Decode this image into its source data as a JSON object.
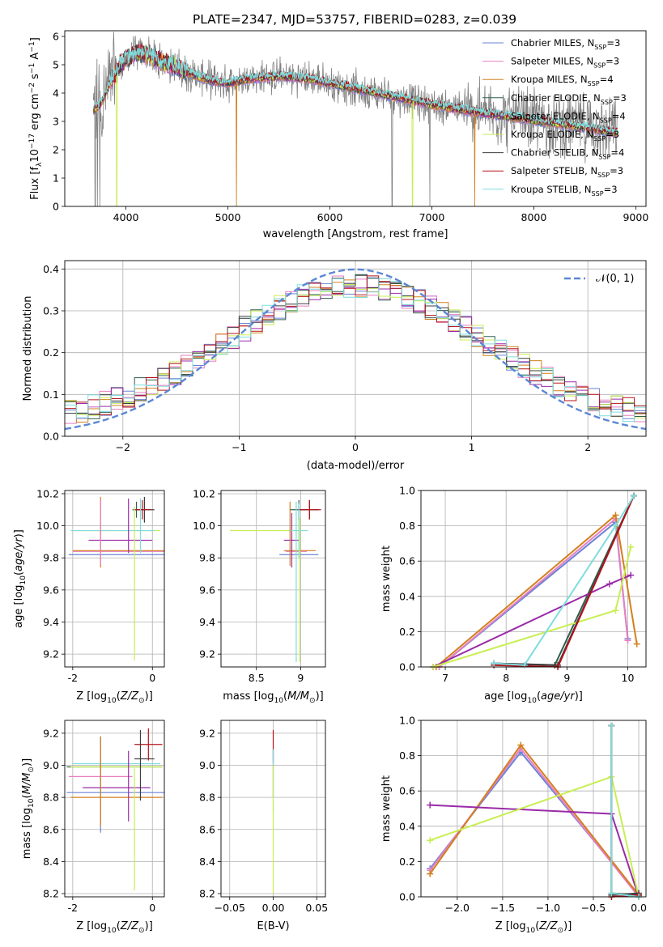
{
  "figure": {
    "title": "PLATE=2347, MJD=53757, FIBERID=0283, z=0.039"
  },
  "series_meta": [
    {
      "name": "Chabrier MILES",
      "nssp": "3",
      "color": "#6a83d6"
    },
    {
      "name": "Salpeter MILES",
      "nssp": "3",
      "color": "#e87fc2"
    },
    {
      "name": "Kroupa MILES",
      "nssp": "4",
      "color": "#d2801c"
    },
    {
      "name": "Chabrier ELODIE",
      "nssp": "3",
      "color": "#2f5f52"
    },
    {
      "name": "Salpeter ELODIE",
      "nssp": "4",
      "color": "#9a2ba8"
    },
    {
      "name": "Kroupa ELODIE",
      "nssp": "3",
      "color": "#c9ee52"
    },
    {
      "name": "Chabrier STELIB",
      "nssp": "4",
      "color": "#3d3d3d"
    },
    {
      "name": "Salpeter STELIB",
      "nssp": "3",
      "color": "#b5141c"
    },
    {
      "name": "Kroupa STELIB",
      "nssp": "3",
      "color": "#7fdcdc"
    }
  ],
  "chart_data": [
    {
      "id": "spectrum",
      "type": "line",
      "xlabel": "wavelength [Angstrom, rest frame]",
      "ylabel": "Flux [f_λ10^-17 erg cm^-2 s^-1 A^-1]",
      "xlim": [
        3400,
        9100
      ],
      "ylim": [
        0,
        6.2
      ],
      "xticks": [
        "4000",
        "5000",
        "6000",
        "7000",
        "8000",
        "9000"
      ],
      "yticks": [
        "0",
        "1",
        "2",
        "3",
        "4",
        "5",
        "6"
      ],
      "data_color": "#808080",
      "continuum": {
        "x": [
          3680,
          3750,
          3850,
          3950,
          4000,
          4100,
          4200,
          4350,
          4500,
          4700,
          4900,
          5000,
          5200,
          5500,
          5800,
          6200,
          6600,
          7000,
          7400,
          7800,
          8200,
          8500,
          8800
        ],
        "y": [
          3.4,
          3.6,
          4.4,
          5.0,
          5.2,
          5.4,
          5.4,
          5.1,
          4.9,
          4.6,
          4.4,
          4.35,
          4.5,
          4.6,
          4.5,
          4.2,
          3.9,
          3.6,
          3.35,
          3.15,
          2.95,
          2.8,
          2.6
        ]
      },
      "legend_placement": "upper right",
      "grid": false
    },
    {
      "id": "residuals",
      "type": "line",
      "xlabel": "(data-model)/error",
      "ylabel": "Normed distribution",
      "xlim": [
        -2.5,
        2.5
      ],
      "ylim": [
        0,
        0.42
      ],
      "xticks": [
        "−2",
        "−1",
        "0",
        "1",
        "2"
      ],
      "yticks": [
        "0.0",
        "0.1",
        "0.2",
        "0.3",
        "0.4"
      ],
      "gaussian_label": "𝒩(0, 1)",
      "gaussian_color": "#5b86d6",
      "grid": true,
      "legend_placement": "upper right"
    },
    {
      "id": "age_vs_Z",
      "type": "scatter",
      "xlabel": "Z [log10(Z/Z⊙)]",
      "ylabel": "age [log10(age/yr)]",
      "xlim": [
        -2.2,
        0.3
      ],
      "ylim": [
        9.12,
        10.22
      ],
      "xticks": [
        -2,
        0
      ],
      "yticks": [
        9.2,
        9.4,
        9.6,
        9.8,
        10.0,
        10.2
      ],
      "grid": true,
      "errorbars": [
        {
          "s": 0,
          "x": -0.9,
          "y": 9.82,
          "xerr": 1.2,
          "yerr": 0.0
        },
        {
          "s": 1,
          "x": -0.85,
          "y": 9.84,
          "xerr": 1.15,
          "yerr": 0.0
        },
        {
          "s": 2,
          "x": -0.8,
          "y": 9.845,
          "xerr": 1.2,
          "yerr": 0.0
        },
        {
          "s": 3,
          "x": -0.4,
          "y": 10.1,
          "xerr": 0.1,
          "yerr": 0.05
        },
        {
          "s": 4,
          "x": -0.8,
          "y": 9.91,
          "xerr": 0.8,
          "yerr": 0.0
        },
        {
          "s": 5,
          "x": -0.9,
          "y": 9.97,
          "xerr": 1.1,
          "yerr": 0.0
        },
        {
          "s": 6,
          "x": -0.2,
          "y": 10.1,
          "xerr": 0.25,
          "yerr": 0.08
        },
        {
          "s": 7,
          "x": -0.25,
          "y": 10.1,
          "xerr": 0.2,
          "yerr": 0.06
        },
        {
          "s": 8,
          "x": -1.0,
          "y": 9.97,
          "xerr": 1.05,
          "yerr": 0.0
        },
        {
          "s": 2,
          "x": -1.3,
          "y": 9.96,
          "xerr": 0.0,
          "yerr": 0.22
        },
        {
          "s": 1,
          "x": -1.3,
          "y": 9.96,
          "xerr": 0.0,
          "yerr": 0.2
        },
        {
          "s": 4,
          "x": -0.6,
          "y": 10.0,
          "xerr": 0.0,
          "yerr": 0.17
        },
        {
          "s": 5,
          "x": -0.45,
          "y": 9.64,
          "xerr": 0.0,
          "yerr": 0.48
        },
        {
          "s": 8,
          "x": -0.3,
          "y": 10.0,
          "xerr": 0.0,
          "yerr": 0.17
        }
      ]
    },
    {
      "id": "age_vs_mass",
      "type": "scatter",
      "xlabel": "mass [log10(M/M⊙)]",
      "ylabel": "",
      "xlim": [
        8.1,
        9.28
      ],
      "ylim": [
        9.12,
        10.22
      ],
      "xticks": [
        8.5,
        9.0
      ],
      "yticks": [
        9.2,
        9.4,
        9.6,
        9.8,
        10.0,
        10.2
      ],
      "grid": true,
      "errorbars": [
        {
          "s": 0,
          "x": 8.98,
          "y": 9.82,
          "xerr": 0.22,
          "yerr": 0.0
        },
        {
          "s": 1,
          "x": 8.95,
          "y": 9.84,
          "xerr": 0.12,
          "yerr": 0.0
        },
        {
          "s": 2,
          "x": 8.99,
          "y": 9.845,
          "xerr": 0.18,
          "yerr": 0.0
        },
        {
          "s": 3,
          "x": 8.98,
          "y": 10.1,
          "xerr": 0.1,
          "yerr": 0.06
        },
        {
          "s": 4,
          "x": 8.9,
          "y": 9.91,
          "xerr": 0.09,
          "yerr": 0.17
        },
        {
          "s": 5,
          "x": 8.6,
          "y": 9.97,
          "xerr": 0.4,
          "yerr": 0.0
        },
        {
          "s": 6,
          "x": 9.1,
          "y": 10.1,
          "xerr": 0.1,
          "yerr": 0.06
        },
        {
          "s": 7,
          "x": 9.1,
          "y": 10.1,
          "xerr": 0.13,
          "yerr": 0.06
        },
        {
          "s": 8,
          "x": 8.98,
          "y": 9.97,
          "xerr": 0.1,
          "yerr": 0.17
        },
        {
          "s": 5,
          "x": 8.99,
          "y": 9.6,
          "xerr": 0.0,
          "yerr": 0.45
        },
        {
          "s": 2,
          "x": 8.88,
          "y": 9.95,
          "xerr": 0.0,
          "yerr": 0.2
        },
        {
          "s": 8,
          "x": 8.95,
          "y": 9.65,
          "xerr": 0.0,
          "yerr": 0.5
        }
      ]
    },
    {
      "id": "weight_vs_age",
      "type": "line",
      "xlabel": "age [log10(age/yr)]",
      "ylabel": "mass weight",
      "xlim": [
        6.6,
        10.3
      ],
      "ylim": [
        0,
        1
      ],
      "xticks": [
        7,
        8,
        9,
        10
      ],
      "yticks": [
        "0.0",
        "0.2",
        "0.4",
        "0.6",
        "0.8",
        "1.0"
      ],
      "grid": true,
      "lines": [
        {
          "s": 0,
          "x": [
            6.9,
            9.8,
            10.0
          ],
          "y": [
            0.0,
            0.82,
            0.16
          ]
        },
        {
          "s": 1,
          "x": [
            6.9,
            9.8,
            10.0
          ],
          "y": [
            0.0,
            0.84,
            0.15
          ]
        },
        {
          "s": 2,
          "x": [
            6.85,
            9.8,
            10.15
          ],
          "y": [
            0.0,
            0.86,
            0.13
          ]
        },
        {
          "s": 3,
          "x": [
            7.8,
            8.8,
            10.1
          ],
          "y": [
            0.02,
            0.01,
            0.97
          ]
        },
        {
          "s": 4,
          "x": [
            6.8,
            9.7,
            10.05
          ],
          "y": [
            0.0,
            0.47,
            0.52
          ]
        },
        {
          "s": 5,
          "x": [
            6.8,
            9.8,
            10.05
          ],
          "y": [
            0.0,
            0.32,
            0.68
          ]
        },
        {
          "s": 6,
          "x": [
            7.8,
            8.85,
            10.1
          ],
          "y": [
            0.02,
            0.01,
            0.97
          ]
        },
        {
          "s": 7,
          "x": [
            7.8,
            8.85,
            10.1
          ],
          "y": [
            0.01,
            0.0,
            0.97
          ]
        },
        {
          "s": 8,
          "x": [
            7.8,
            8.3,
            9.8,
            10.1
          ],
          "y": [
            0.02,
            0.01,
            0.8,
            0.97
          ]
        }
      ]
    },
    {
      "id": "mass_vs_Z",
      "type": "scatter",
      "xlabel": "Z [log10(Z/Z⊙)]",
      "ylabel": "mass [log10(M/M⊙)]",
      "xlim": [
        -2.2,
        0.3
      ],
      "ylim": [
        8.18,
        9.28
      ],
      "xticks": [
        -2,
        0
      ],
      "yticks": [
        8.2,
        8.4,
        8.6,
        8.8,
        9.0,
        9.2
      ],
      "grid": true,
      "errorbars": [
        {
          "s": 0,
          "x": -0.9,
          "y": 8.83,
          "xerr": 1.25,
          "yerr": 0.0
        },
        {
          "s": 1,
          "x": -1.3,
          "y": 8.93,
          "xerr": 0.8,
          "yerr": 0.0
        },
        {
          "s": 2,
          "x": -0.9,
          "y": 8.8,
          "xerr": 1.15,
          "yerr": 0.0
        },
        {
          "s": 3,
          "x": -0.95,
          "y": 8.99,
          "xerr": 1.2,
          "yerr": 0.0
        },
        {
          "s": 4,
          "x": -0.9,
          "y": 8.86,
          "xerr": 0.85,
          "yerr": 0.0
        },
        {
          "s": 5,
          "x": -0.9,
          "y": 8.99,
          "xerr": 1.15,
          "yerr": 0.0
        },
        {
          "s": 6,
          "x": -0.2,
          "y": 9.04,
          "xerr": 0.25,
          "yerr": 0.0
        },
        {
          "s": 7,
          "x": -0.1,
          "y": 9.13,
          "xerr": 0.35,
          "yerr": 0.1
        },
        {
          "s": 8,
          "x": -0.9,
          "y": 9.01,
          "xerr": 1.1,
          "yerr": 0.0
        },
        {
          "s": 0,
          "x": -1.3,
          "y": 8.88,
          "xerr": 0.0,
          "yerr": 0.3
        },
        {
          "s": 2,
          "x": -1.3,
          "y": 8.9,
          "xerr": 0.0,
          "yerr": 0.28
        },
        {
          "s": 4,
          "x": -0.6,
          "y": 8.87,
          "xerr": 0.0,
          "yerr": 0.22
        },
        {
          "s": 5,
          "x": -0.45,
          "y": 8.6,
          "xerr": 0.0,
          "yerr": 0.38
        },
        {
          "s": 6,
          "x": -0.3,
          "y": 9.0,
          "xerr": 0.0,
          "yerr": 0.22
        }
      ]
    },
    {
      "id": "mass_vs_ebv",
      "type": "scatter",
      "xlabel": "E(B-V)",
      "ylabel": "",
      "xlim": [
        -0.06,
        0.06
      ],
      "ylim": [
        8.18,
        9.28
      ],
      "xticks": [
        "−0.05",
        "0.00",
        "0.05"
      ],
      "yticks": [
        8.2,
        8.4,
        8.6,
        8.8,
        9.0,
        9.2
      ],
      "grid": true,
      "errorbars": [
        {
          "s": 7,
          "x": 0.0,
          "y": 9.12,
          "xerr": 0.0,
          "yerr": 0.1
        },
        {
          "s": 4,
          "x": 0.0,
          "y": 8.95,
          "xerr": 0.0,
          "yerr": 0.15
        },
        {
          "s": 8,
          "x": 0.0,
          "y": 8.9,
          "xerr": 0.0,
          "yerr": 0.2
        },
        {
          "s": 5,
          "x": 0.0,
          "y": 8.6,
          "xerr": 0.0,
          "yerr": 0.4
        }
      ]
    },
    {
      "id": "weight_vs_Z",
      "type": "line",
      "xlabel": "Z [log10(Z/Z⊙)]",
      "ylabel": "mass weight",
      "xlim": [
        -2.4,
        0.08
      ],
      "ylim": [
        0,
        1
      ],
      "xticks": [
        "−2.0",
        "−1.5",
        "−1.0",
        "−0.5",
        "0.0"
      ],
      "yticks": [
        "0.0",
        "0.2",
        "0.4",
        "0.6",
        "0.8",
        "1.0"
      ],
      "grid": true,
      "lines": [
        {
          "s": 0,
          "x": [
            -2.3,
            -1.3,
            0.0
          ],
          "y": [
            0.16,
            0.82,
            0.01
          ]
        },
        {
          "s": 1,
          "x": [
            -2.3,
            -1.3,
            0.0
          ],
          "y": [
            0.15,
            0.84,
            0.0
          ]
        },
        {
          "s": 2,
          "x": [
            -2.3,
            -1.3,
            0.0
          ],
          "y": [
            0.13,
            0.86,
            0.01
          ]
        },
        {
          "s": 3,
          "x": [
            -0.3,
            -0.3,
            0.0
          ],
          "y": [
            0.97,
            0.02,
            0.01
          ]
        },
        {
          "s": 4,
          "x": [
            -2.3,
            -0.3,
            0.0
          ],
          "y": [
            0.52,
            0.47,
            0.0
          ]
        },
        {
          "s": 5,
          "x": [
            -2.3,
            -0.3,
            0.0
          ],
          "y": [
            0.32,
            0.68,
            0.0
          ]
        },
        {
          "s": 6,
          "x": [
            -0.3,
            -0.3,
            0.0
          ],
          "y": [
            0.97,
            0.01,
            0.02
          ]
        },
        {
          "s": 7,
          "x": [
            -0.3,
            -0.3,
            0.0
          ],
          "y": [
            0.97,
            0.0,
            0.01
          ]
        },
        {
          "s": 8,
          "x": [
            -0.3,
            -0.3,
            0.0
          ],
          "y": [
            0.97,
            0.02,
            0.0
          ]
        }
      ]
    }
  ]
}
